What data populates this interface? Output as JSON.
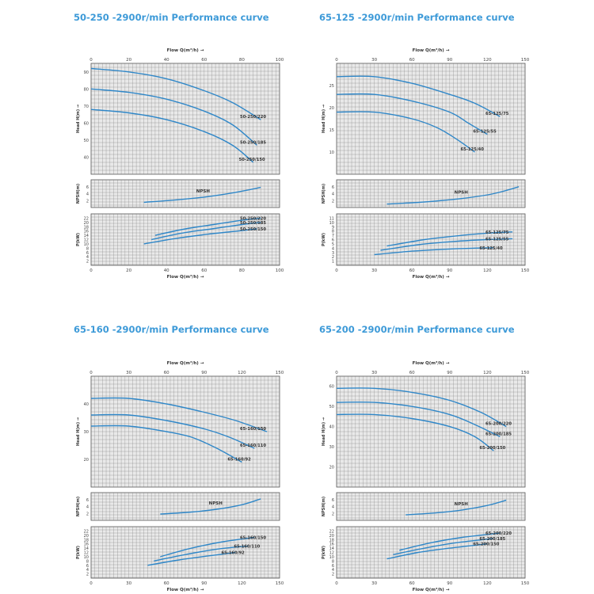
{
  "charts": [
    {
      "title": "50-250 -2900r/min Performance curve",
      "flow_axis_label": "Flow Q(m³/h) →",
      "head_axis_label": "Head H(m) →",
      "npsh_axis_label": "NPSH(m)",
      "power_axis_label": "P(kW)",
      "npsh_curve_label": "NPSH"
    },
    {
      "title": "65-125 -2900r/min Performance curve",
      "flow_axis_label": "Flow Q(m³/h) →",
      "head_axis_label": "Head H(m) →",
      "npsh_axis_label": "NPSH(m)",
      "power_axis_label": "P(kW)",
      "npsh_curve_label": "NPSH"
    },
    {
      "title": "65-160 -2900r/min Performance curve",
      "flow_axis_label": "Flow Q(m³/h) →",
      "head_axis_label": "Head H(m) →",
      "npsh_axis_label": "NPSH(m)",
      "power_axis_label": "P(kW)",
      "npsh_curve_label": "NPSH"
    },
    {
      "title": "65-200 -2900r/min Performance curve",
      "flow_axis_label": "Flow Q(m³/h) →",
      "head_axis_label": "Head H(m) →",
      "npsh_axis_label": "NPSH(m)",
      "power_axis_label": "P(kW)",
      "npsh_curve_label": "NPSH"
    }
  ],
  "colors": {
    "title": "#3d9ad8",
    "curve": "#2f87c8",
    "grid": "#7a7a7a",
    "panel_bg": "#e9e9e9"
  },
  "chart_data": [
    {
      "type": "line",
      "title": "50-250 -2900r/min Performance curve",
      "xlabel": "Flow Q(m³/h) →",
      "xlim": [
        0,
        100
      ],
      "xticks": [
        0,
        20,
        40,
        60,
        80,
        100
      ],
      "head": {
        "ylabel": "Head H(m) →",
        "ylim": [
          30,
          95
        ],
        "yticks": [
          40,
          50,
          60,
          70,
          80,
          90
        ],
        "series": [
          {
            "name": "50-250/220",
            "x": [
              0,
              20,
              40,
              60,
              75,
              90
            ],
            "y": [
              92,
              90,
              86,
              79,
              72,
              62
            ]
          },
          {
            "name": "50-250/185",
            "x": [
              0,
              20,
              40,
              60,
              75,
              88
            ],
            "y": [
              80,
              78,
              74,
              67,
              59,
              47
            ]
          },
          {
            "name": "50-250/150",
            "x": [
              0,
              20,
              40,
              60,
              75,
              86
            ],
            "y": [
              68,
              66,
              62,
              55,
              47,
              37
            ]
          }
        ]
      },
      "npsh": {
        "ylabel": "NPSH(m)",
        "ylim": [
          0,
          8
        ],
        "yticks": [
          2,
          4,
          6
        ],
        "name": "NPSH",
        "x": [
          28,
          45,
          60,
          75,
          90
        ],
        "y": [
          1.5,
          2.2,
          3.0,
          4.2,
          5.8
        ]
      },
      "power": {
        "ylabel": "P(kW)",
        "ylim": [
          0,
          24
        ],
        "yticks": [
          2,
          4,
          6,
          8,
          10,
          12,
          14,
          16,
          18,
          20,
          22
        ],
        "series": [
          {
            "name": "50-250/220",
            "x": [
              34,
              50,
              65,
              80,
              90
            ],
            "y": [
              14,
              17,
              19,
              21,
              22
            ]
          },
          {
            "name": "50-250/185",
            "x": [
              32,
              48,
              64,
              80,
              90
            ],
            "y": [
              12,
              15,
              17,
              19,
              20
            ]
          },
          {
            "name": "50-250/150",
            "x": [
              28,
              45,
              62,
              78,
              88
            ],
            "y": [
              10,
              12.5,
              14.5,
              16,
              17
            ]
          }
        ]
      }
    },
    {
      "type": "line",
      "title": "65-125 -2900r/min Performance curve",
      "xlabel": "Flow Q(m³/h) →",
      "xlim": [
        0,
        150
      ],
      "xticks": [
        0,
        30,
        60,
        90,
        120,
        150
      ],
      "head": {
        "ylabel": "Head H(m) →",
        "ylim": [
          5,
          30
        ],
        "yticks": [
          10,
          15,
          20,
          25
        ],
        "series": [
          {
            "name": "65-125/75",
            "x": [
              0,
              30,
              60,
              90,
              110,
              130
            ],
            "y": [
              27,
              27,
              25.5,
              23,
              21,
              18
            ]
          },
          {
            "name": "65-125/55",
            "x": [
              0,
              30,
              60,
              90,
              105,
              120
            ],
            "y": [
              23,
              23,
              21.5,
              19,
              16.5,
              14
            ]
          },
          {
            "name": "65-125/40",
            "x": [
              0,
              30,
              60,
              80,
              95,
              110
            ],
            "y": [
              19,
              19,
              17.5,
              15.5,
              13,
              10
            ]
          }
        ]
      },
      "npsh": {
        "ylabel": "NPSH(m)",
        "ylim": [
          0,
          8
        ],
        "yticks": [
          2,
          4,
          6
        ],
        "name": "NPSH",
        "x": [
          40,
          70,
          100,
          125,
          145
        ],
        "y": [
          1.0,
          1.6,
          2.6,
          4.0,
          6.0
        ]
      },
      "power": {
        "ylabel": "P(kW)",
        "ylim": [
          0,
          12
        ],
        "yticks": [
          1,
          2,
          3,
          4,
          5,
          6,
          7,
          8,
          9,
          10,
          11
        ],
        "series": [
          {
            "name": "65-125/75",
            "x": [
              40,
              70,
              100,
              120,
              140
            ],
            "y": [
              4.5,
              6,
              7,
              7.5,
              7.8
            ]
          },
          {
            "name": "65-125/55",
            "x": [
              35,
              65,
              95,
              120,
              140
            ],
            "y": [
              3.5,
              4.8,
              5.6,
              6,
              6.2
            ]
          },
          {
            "name": "65-125/40",
            "x": [
              30,
              60,
              90,
              110,
              125
            ],
            "y": [
              2.5,
              3.3,
              3.8,
              4,
              4.1
            ]
          }
        ]
      }
    },
    {
      "type": "line",
      "title": "65-160 -2900r/min Performance curve",
      "xlabel": "Flow Q(m³/h) →",
      "xlim": [
        0,
        150
      ],
      "xticks": [
        0,
        30,
        60,
        90,
        120,
        150
      ],
      "head": {
        "ylabel": "Head H(m) →",
        "ylim": [
          10,
          50
        ],
        "yticks": [
          20,
          30,
          40
        ],
        "series": [
          {
            "name": "65-160/150",
            "x": [
              0,
              30,
              60,
              90,
              115,
              140
            ],
            "y": [
              42,
              42,
              40,
              37,
              34,
              30
            ]
          },
          {
            "name": "65-160/110",
            "x": [
              0,
              30,
              60,
              90,
              110,
              130
            ],
            "y": [
              36,
              36,
              34,
              31,
              28,
              24
            ]
          },
          {
            "name": "65-160/92",
            "x": [
              0,
              30,
              60,
              80,
              100,
              120
            ],
            "y": [
              32,
              32,
              30,
              28,
              24,
              19
            ]
          }
        ]
      },
      "npsh": {
        "ylabel": "NPSH(m)",
        "ylim": [
          0,
          8
        ],
        "yticks": [
          2,
          4,
          6
        ],
        "name": "NPSH",
        "x": [
          55,
          80,
          100,
          120,
          135
        ],
        "y": [
          1.8,
          2.4,
          3.2,
          4.5,
          6.2
        ]
      },
      "power": {
        "ylabel": "P(kW)",
        "ylim": [
          0,
          24
        ],
        "yticks": [
          2,
          4,
          6,
          8,
          10,
          12,
          14,
          16,
          18,
          20,
          22
        ],
        "series": [
          {
            "name": "65-160/150",
            "x": [
              55,
              80,
              105,
              130
            ],
            "y": [
              10,
              14,
              17,
              19
            ]
          },
          {
            "name": "65-160/110",
            "x": [
              50,
              75,
              100,
              125
            ],
            "y": [
              8,
              11,
              13.5,
              15
            ]
          },
          {
            "name": "65-160/92",
            "x": [
              45,
              70,
              95,
              115
            ],
            "y": [
              6,
              8.5,
              10.5,
              12
            ]
          }
        ]
      }
    },
    {
      "type": "line",
      "title": "65-200 -2900r/min Performance curve",
      "xlabel": "Flow Q(m³/h) →",
      "xlim": [
        0,
        150
      ],
      "xticks": [
        0,
        30,
        60,
        90,
        120,
        150
      ],
      "head": {
        "ylabel": "Head H(m) →",
        "ylim": [
          10,
          65
        ],
        "yticks": [
          20,
          30,
          40,
          50,
          60
        ],
        "series": [
          {
            "name": "65-200/220",
            "x": [
              0,
              30,
              60,
              90,
              115,
              135
            ],
            "y": [
              59,
              59,
              57,
              53,
              47,
              40
            ]
          },
          {
            "name": "65-200/185",
            "x": [
              0,
              30,
              60,
              90,
              110,
              130
            ],
            "y": [
              52,
              52,
              50,
              46,
              41,
              35
            ]
          },
          {
            "name": "65-200/150",
            "x": [
              0,
              30,
              60,
              90,
              110,
              125
            ],
            "y": [
              46,
              46,
              44,
              40,
              35,
              28
            ]
          }
        ]
      },
      "npsh": {
        "ylabel": "NPSH(m)",
        "ylim": [
          0,
          8
        ],
        "yticks": [
          2,
          4,
          6
        ],
        "name": "NPSH",
        "x": [
          55,
          80,
          100,
          120,
          135
        ],
        "y": [
          1.6,
          2.2,
          3.0,
          4.3,
          5.8
        ]
      },
      "power": {
        "ylabel": "P(kW)",
        "ylim": [
          0,
          24
        ],
        "yticks": [
          2,
          4,
          6,
          8,
          10,
          12,
          14,
          16,
          18,
          20,
          22
        ],
        "series": [
          {
            "name": "65-200/220",
            "x": [
              50,
              75,
              100,
              130
            ],
            "y": [
              13,
              16.5,
              19,
              21
            ]
          },
          {
            "name": "65-200/185",
            "x": [
              45,
              70,
              95,
              125
            ],
            "y": [
              11,
              14,
              16.5,
              18.5
            ]
          },
          {
            "name": "65-200/150",
            "x": [
              40,
              65,
              90,
              120
            ],
            "y": [
              9,
              12,
              14,
              16
            ]
          }
        ]
      }
    }
  ]
}
